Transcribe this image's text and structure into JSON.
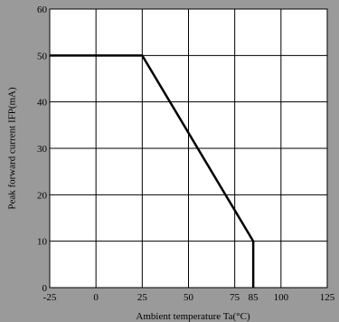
{
  "chart_data": {
    "type": "line",
    "title": "",
    "xlabel": "Ambient temperature Ta(°C)",
    "ylabel": "Peak forward current IFP(mA)",
    "xlim": [
      -25,
      125
    ],
    "ylim": [
      0,
      60
    ],
    "grid": true,
    "x_ticks": [
      -25,
      0,
      25,
      50,
      75,
      100,
      125
    ],
    "x_tick_labels": [
      "-25",
      "0",
      "25",
      "50",
      "75",
      "100",
      "125"
    ],
    "x_extra_ticks": [
      85
    ],
    "x_extra_tick_labels": [
      "85"
    ],
    "y_ticks": [
      0,
      10,
      20,
      30,
      40,
      50,
      60
    ],
    "y_tick_labels": [
      "0",
      "10",
      "20",
      "30",
      "40",
      "50",
      "60"
    ],
    "series": [
      {
        "x": [
          -25,
          25,
          85,
          85
        ],
        "y": [
          50,
          50,
          10,
          0
        ]
      }
    ],
    "colors": {
      "background": "#9a9a9a",
      "plot_area": "#ffffff",
      "grid": "#000000",
      "line": "#000000"
    }
  }
}
